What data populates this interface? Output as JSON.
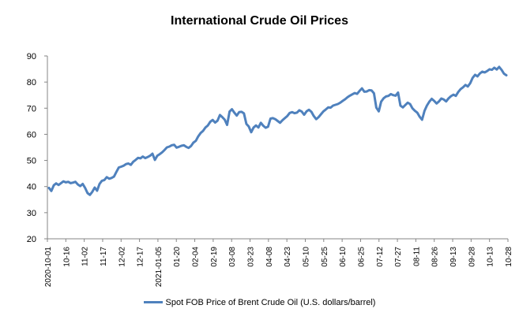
{
  "chart_data": {
    "type": "line",
    "title": "International Crude Oil Prices",
    "xlabel": "",
    "ylabel": "",
    "ylim": [
      20,
      90
    ],
    "yticks": [
      20,
      30,
      40,
      50,
      60,
      70,
      80,
      90
    ],
    "x_tick_labels": [
      "2020-10-01",
      "10-16",
      "11-02",
      "11-17",
      "12-02",
      "12-17",
      "2021-01-05",
      "01-20",
      "02-04",
      "02-19",
      "03-08",
      "03-23",
      "04-08",
      "04-23",
      "05-10",
      "05-25",
      "06-10",
      "06-25",
      "07-12",
      "07-27",
      "08-11",
      "08-26",
      "09-13",
      "09-28",
      "10-13",
      "10-28"
    ],
    "grid": false,
    "legend_position": "bottom",
    "series": [
      {
        "name": "Spot FOB Price of Brent Crude Oil (U.S. dollars/barrel)",
        "color": "#4f81bd",
        "values": [
          39.5,
          38.3,
          40.5,
          41.2,
          40.6,
          41.3,
          42.0,
          41.6,
          41.8,
          41.3,
          41.5,
          41.8,
          40.8,
          40.2,
          41.0,
          39.5,
          37.5,
          36.8,
          38.0,
          39.6,
          38.4,
          41.0,
          42.2,
          42.5,
          43.6,
          43.0,
          43.3,
          43.8,
          45.6,
          47.3,
          47.6,
          48.0,
          48.6,
          48.8,
          48.3,
          49.5,
          50.2,
          51.0,
          50.8,
          51.5,
          50.9,
          51.3,
          51.8,
          52.6,
          50.2,
          51.8,
          52.4,
          53.1,
          54.0,
          55.0,
          55.3,
          55.8,
          56.0,
          54.9,
          55.2,
          55.6,
          55.8,
          55.2,
          54.8,
          55.5,
          56.8,
          57.5,
          59.2,
          60.5,
          61.3,
          62.6,
          63.4,
          64.8,
          65.5,
          64.5,
          65.2,
          67.4,
          66.6,
          65.6,
          63.6,
          68.7,
          69.6,
          68.3,
          67.2,
          68.5,
          68.6,
          68.0,
          64.0,
          63.0,
          60.8,
          62.6,
          63.4,
          62.6,
          64.4,
          63.3,
          62.5,
          62.9,
          66.0,
          66.2,
          65.8,
          65.1,
          64.4,
          65.4,
          66.2,
          67.0,
          68.2,
          68.5,
          68.1,
          68.3,
          69.2,
          68.7,
          67.5,
          68.8,
          69.4,
          68.6,
          67.0,
          65.8,
          66.6,
          67.7,
          68.8,
          69.5,
          70.3,
          70.2,
          71.0,
          71.3,
          71.6,
          72.1,
          72.8,
          73.4,
          74.2,
          74.8,
          75.3,
          75.8,
          75.5,
          76.6,
          77.6,
          76.3,
          76.4,
          76.9,
          76.8,
          75.7,
          70.2,
          68.8,
          72.5,
          73.8,
          74.5,
          74.7,
          75.4,
          75.0,
          74.8,
          76.0,
          71.0,
          70.3,
          71.2,
          72.1,
          71.6,
          69.9,
          69.0,
          68.3,
          66.7,
          65.6,
          69.0,
          71.0,
          72.5,
          73.6,
          72.8,
          71.8,
          72.6,
          73.7,
          73.3,
          72.6,
          73.8,
          74.6,
          75.2,
          74.7,
          76.2,
          77.3,
          78.0,
          78.9,
          78.3,
          79.6,
          81.6,
          82.8,
          82.2,
          83.3,
          84.0,
          83.7,
          84.2,
          84.9,
          84.7,
          85.5,
          84.8,
          85.8,
          84.7,
          83.2,
          82.6
        ]
      }
    ]
  }
}
